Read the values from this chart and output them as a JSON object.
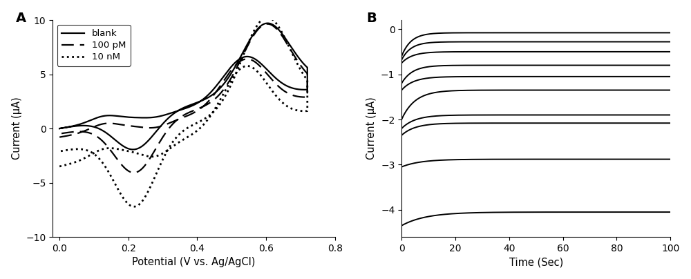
{
  "panel_A": {
    "label": "A",
    "xlabel": "Potential (V vs. Ag/AgCl)",
    "ylabel": "Current (μA)",
    "xlim": [
      -0.02,
      0.8
    ],
    "ylim": [
      -10,
      10
    ],
    "xticks": [
      0.0,
      0.2,
      0.4,
      0.6,
      0.8
    ],
    "yticks": [
      -10,
      -5,
      0,
      5,
      10
    ],
    "legend": [
      "blank",
      "100 pM",
      "10 nM"
    ]
  },
  "panel_B": {
    "label": "B",
    "xlabel": "Time (Sec)",
    "ylabel": "Current (μA)",
    "xlim": [
      0,
      100
    ],
    "ylim": [
      -4.6,
      0.2
    ],
    "xticks": [
      0,
      20,
      40,
      60,
      80,
      100
    ],
    "yticks": [
      -4,
      -3,
      -2,
      -1,
      0
    ],
    "curves": [
      {
        "Ipeak": -0.6,
        "Iinf": -0.08,
        "tau": 3.5
      },
      {
        "Ipeak": -0.68,
        "Iinf": -0.28,
        "tau": 3.5
      },
      {
        "Ipeak": -0.75,
        "Iinf": -0.5,
        "tau": 4.0
      },
      {
        "Ipeak": -1.2,
        "Iinf": -0.8,
        "tau": 4.0
      },
      {
        "Ipeak": -1.35,
        "Iinf": -1.05,
        "tau": 4.5
      },
      {
        "Ipeak": -2.0,
        "Iinf": -1.35,
        "tau": 5.0
      },
      {
        "Ipeak": -2.2,
        "Iinf": -1.9,
        "tau": 5.0
      },
      {
        "Ipeak": -2.35,
        "Iinf": -2.08,
        "tau": 5.0
      },
      {
        "Ipeak": -3.05,
        "Iinf": -2.88,
        "tau": 7.0
      },
      {
        "Ipeak": -4.35,
        "Iinf": -4.05,
        "tau": 9.0
      }
    ]
  }
}
